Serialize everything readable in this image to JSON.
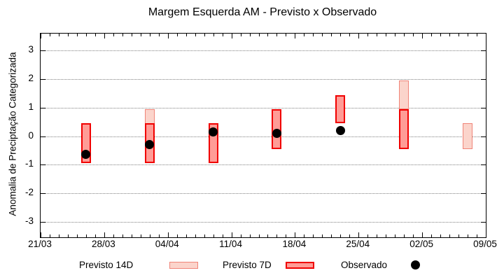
{
  "title": "Margem Esquerda AM - Previsto x Observado",
  "ylabel": "Anomalia de Preciptação Categorizada",
  "legend": {
    "previsto_14d": "Previsto 14D",
    "previsto_7d": "Previsto 7D",
    "observado": "Observado"
  },
  "colors": {
    "previsto_14d_fill": "#fbd4cb",
    "previsto_14d_border": "#f08478",
    "previsto_7d_fill": "#ff9c96",
    "previsto_7d_border": "#f00000",
    "observado": "#000000",
    "grid": "#808080",
    "axis": "#000000"
  },
  "chart_data": {
    "type": "bar",
    "subtype": "range-bars-with-scatter-overlay",
    "title": "Margem Esquerda AM - Previsto x Observado",
    "xlabel": "",
    "ylabel": "Anomalia de Preciptação Categorizada",
    "ylim": [
      -3.55,
      3.6
    ],
    "y_ticks": [
      3,
      2,
      1,
      0,
      -1,
      -2,
      -3
    ],
    "grid": "horizontal-dotted",
    "legend_position": "below",
    "x_axis": {
      "tick_labels": [
        "21/03",
        "28/03",
        "04/04",
        "11/04",
        "18/04",
        "25/04",
        "02/05",
        "09/05"
      ],
      "tick_days": [
        0,
        7,
        14,
        21,
        28,
        35,
        42,
        49
      ],
      "total_days": 49,
      "minor_tick_every_days": 1
    },
    "series": [
      {
        "key": "previsto_14d",
        "name": "Previsto 14D",
        "type": "range-bar",
        "fill": "#fbd4cb",
        "border": "#f08478",
        "border_width": 1.5,
        "points": [
          {
            "date": "02/04",
            "day": 12,
            "low": -0.95,
            "high": 0.95
          },
          {
            "date": "30/04",
            "day": 40,
            "low": 0.95,
            "high": 1.95
          },
          {
            "date": "07/05",
            "day": 47,
            "low": -0.45,
            "high": 0.45
          }
        ]
      },
      {
        "key": "previsto_7d",
        "name": "Previsto 7D",
        "type": "range-bar",
        "fill": "#ff9c96",
        "border": "#f00000",
        "border_width": 2,
        "points": [
          {
            "date": "26/03",
            "day": 5,
            "low": -0.95,
            "high": 0.45
          },
          {
            "date": "02/04",
            "day": 12,
            "low": -0.95,
            "high": 0.45
          },
          {
            "date": "09/04",
            "day": 19,
            "low": -0.95,
            "high": 0.45
          },
          {
            "date": "16/04",
            "day": 26,
            "low": -0.45,
            "high": 0.95
          },
          {
            "date": "23/04",
            "day": 33,
            "low": 0.45,
            "high": 1.45
          },
          {
            "date": "30/04",
            "day": 40,
            "low": -0.45,
            "high": 0.95
          }
        ]
      },
      {
        "key": "observado",
        "name": "Observado",
        "type": "scatter",
        "color": "#000000",
        "points": [
          {
            "date": "26/03",
            "day": 5,
            "value": -0.65
          },
          {
            "date": "02/04",
            "day": 12,
            "value": -0.3
          },
          {
            "date": "09/04",
            "day": 19,
            "value": 0.15
          },
          {
            "date": "16/04",
            "day": 26,
            "value": 0.1
          },
          {
            "date": "23/04",
            "day": 33,
            "value": 0.2
          }
        ]
      }
    ]
  }
}
